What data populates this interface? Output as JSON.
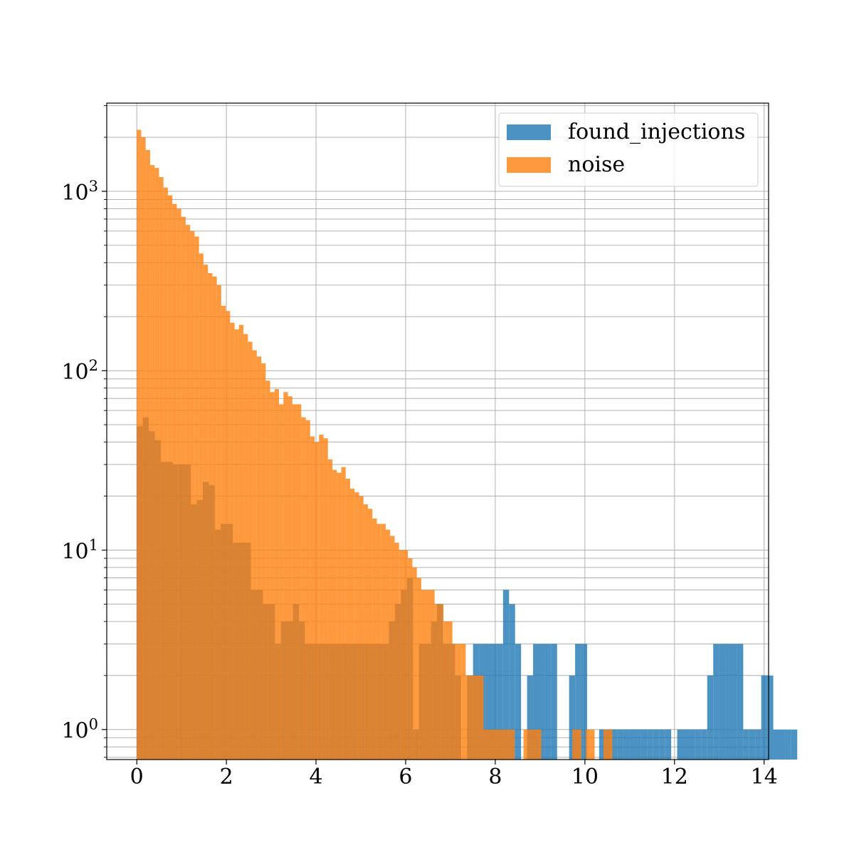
{
  "chart_data": {
    "type": "histogram",
    "x_scale": "linear",
    "y_scale": "log",
    "xlim": [
      -0.67,
      14.1
    ],
    "ylim": [
      0.68,
      3100
    ],
    "grid": true,
    "legend_position": "top-right",
    "xticks": [
      0,
      2,
      4,
      6,
      8,
      10,
      12,
      14
    ],
    "xtick_labels": [
      "0",
      "2",
      "4",
      "6",
      "8",
      "10",
      "12",
      "14"
    ],
    "yticks": [
      1,
      10,
      100,
      1000
    ],
    "ytick_labels": [
      {
        "base": "10",
        "exp": "0"
      },
      {
        "base": "10",
        "exp": "1"
      },
      {
        "base": "10",
        "exp": "2"
      },
      {
        "base": "10",
        "exp": "3"
      }
    ],
    "series": [
      {
        "name": "found_injections",
        "color": "#1f77b4",
        "alpha": 0.8,
        "bin_start": 0.0,
        "bin_width": 0.134,
        "counts": [
          49,
          55,
          46,
          41,
          31,
          31,
          30,
          30,
          30,
          18,
          19,
          24,
          23,
          13,
          14,
          14,
          11,
          11,
          11,
          6,
          6,
          5,
          5,
          3,
          4,
          4,
          5,
          4,
          3,
          3,
          3,
          3,
          3,
          3,
          3,
          3,
          3,
          3,
          3,
          3,
          3,
          3,
          4,
          5,
          6,
          7,
          1,
          3,
          3,
          4,
          5,
          3,
          3,
          2,
          0,
          2,
          3,
          3,
          3,
          3,
          3,
          6,
          5,
          3,
          0,
          2,
          3,
          3,
          3,
          3,
          0,
          0,
          2,
          3,
          3,
          0,
          0,
          1,
          1,
          1,
          1,
          1,
          1,
          1,
          1,
          1,
          1,
          1,
          1,
          0,
          1,
          1,
          1,
          1,
          1,
          2,
          3,
          3,
          3,
          3,
          3,
          1,
          1,
          1,
          2,
          2,
          1,
          1,
          1,
          1
        ]
      },
      {
        "name": "noise",
        "color": "#ff7f0e",
        "alpha": 0.8,
        "bin_start": 0.0,
        "bin_width": 0.0992,
        "counts": [
          2200,
          2000,
          1700,
          1400,
          1350,
          1200,
          1050,
          950,
          850,
          800,
          720,
          650,
          600,
          560,
          450,
          390,
          350,
          335,
          300,
          230,
          215,
          185,
          170,
          180,
          160,
          145,
          130,
          120,
          110,
          88,
          76,
          79,
          65,
          76,
          72,
          65,
          65,
          55,
          53,
          43,
          40,
          44,
          42,
          32,
          28,
          27,
          29,
          25,
          22,
          21,
          20,
          18,
          17,
          15,
          14,
          14,
          13,
          12,
          11,
          10,
          10,
          9,
          8,
          7,
          6,
          6,
          6,
          5,
          5,
          4,
          4,
          3,
          3,
          3,
          2,
          2,
          2,
          2,
          1,
          1,
          1,
          1,
          1,
          1,
          1,
          0,
          0,
          1,
          1,
          1,
          1,
          0,
          0,
          0,
          0,
          0,
          0,
          0,
          1,
          1,
          0,
          1,
          1,
          0,
          0,
          1,
          1
        ]
      }
    ]
  }
}
